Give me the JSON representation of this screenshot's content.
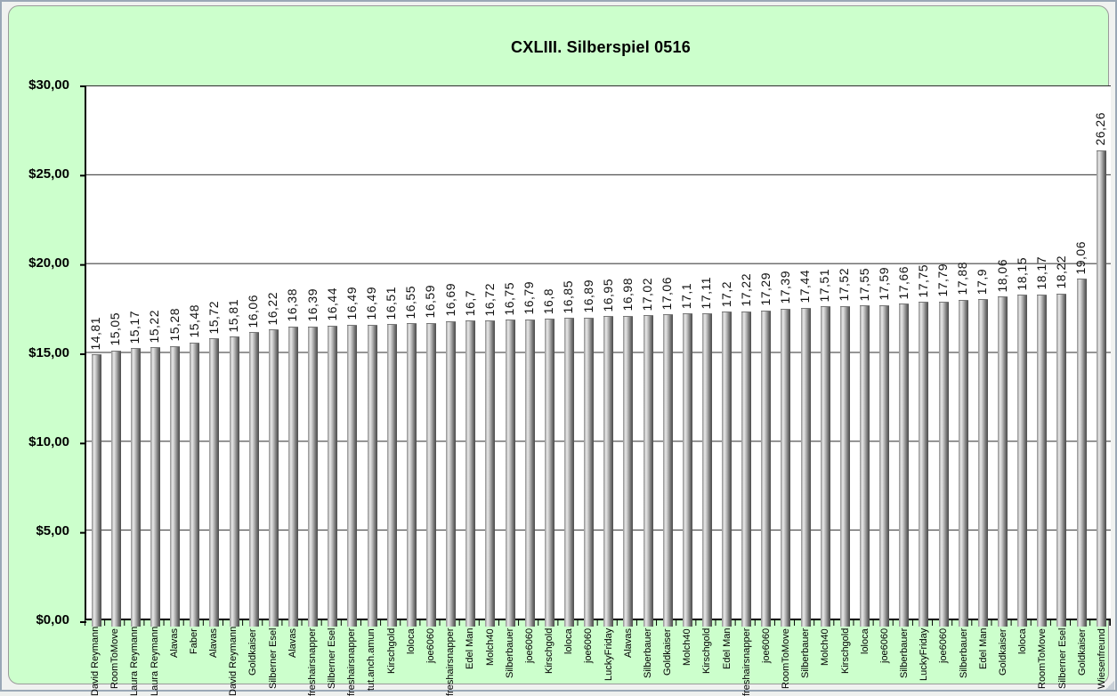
{
  "window": {
    "chart_background": "#ccffcc",
    "plot_background": "#ffffff",
    "bar_gradient": [
      "#8f8f8f",
      "#e9e9e9",
      "#4c4c4c"
    ]
  },
  "chart_data": {
    "type": "bar",
    "title": "CXLIII. Silberspiel 0516",
    "xlabel": "",
    "ylabel": "",
    "legend": "none",
    "grid": true,
    "y_axis": {
      "min": 0,
      "max": 30,
      "step": 5,
      "tick_labels": [
        "$30,00",
        "$25,00",
        "$20,00",
        "$15,00",
        "$10,00",
        "$5,00",
        "$0,00"
      ]
    },
    "categories": [
      "David Reymann",
      "RoomToMove",
      "Laura Reymann",
      "Laura Reymann",
      "Alavas",
      "Faber",
      "Alavas",
      "David Reymann",
      "Goldkaiser",
      "Silberner Esel",
      "Alavas",
      "freshairsnapper",
      "Silberner Esel",
      "freshairsnapper",
      "tut.anch.amun",
      "Kirschgold",
      "loloca",
      "joe6060",
      "freshairsnapper",
      "Edel Man",
      "Molch40",
      "Silberbauer",
      "joe6060",
      "Kirschgold",
      "loloca",
      "joe6060",
      "LuckyFriday",
      "Alavas",
      "Silberbauer",
      "Goldkaiser",
      "Molch40",
      "Kirschgold",
      "Edel Man",
      "freshairsnapper",
      "joe6060",
      "RoomToMove",
      "Silberbauer",
      "Molch40",
      "Kirschgold",
      "loloca",
      "joe6060",
      "Silberbauer",
      "LuckyFriday",
      "joe6060",
      "Silberbauer",
      "Edel Man",
      "Goldkaiser",
      "loloca",
      "RoomToMove",
      "Silberner Esel",
      "Goldkaiser",
      "Wiesenfreund"
    ],
    "values": [
      14.81,
      15.05,
      15.17,
      15.22,
      15.28,
      15.48,
      15.72,
      15.81,
      16.06,
      16.22,
      16.38,
      16.39,
      16.44,
      16.49,
      16.49,
      16.51,
      16.55,
      16.59,
      16.69,
      16.7,
      16.72,
      16.75,
      16.79,
      16.8,
      16.85,
      16.89,
      16.95,
      16.98,
      17.02,
      17.06,
      17.1,
      17.11,
      17.2,
      17.22,
      17.29,
      17.39,
      17.44,
      17.51,
      17.52,
      17.55,
      17.59,
      17.66,
      17.75,
      17.79,
      17.88,
      17.9,
      18.06,
      18.15,
      18.17,
      18.22,
      19.06,
      26.26
    ],
    "value_labels": [
      "14,81",
      "15,05",
      "15,17",
      "15,22",
      "15,28",
      "15,48",
      "15,72",
      "15,81",
      "16,06",
      "16,22",
      "16,38",
      "16,39",
      "16,44",
      "16,49",
      "16,49",
      "16,51",
      "16,55",
      "16,59",
      "16,69",
      "16,7",
      "16,72",
      "16,75",
      "16,79",
      "16,8",
      "16,85",
      "16,89",
      "16,95",
      "16,98",
      "17,02",
      "17,06",
      "17,1",
      "17,11",
      "17,2",
      "17,22",
      "17,29",
      "17,39",
      "17,44",
      "17,51",
      "17,52",
      "17,55",
      "17,59",
      "17,66",
      "17,75",
      "17,79",
      "17,88",
      "17,9",
      "18,06",
      "18,15",
      "18,17",
      "18,22",
      "19,06",
      "26,26"
    ]
  }
}
